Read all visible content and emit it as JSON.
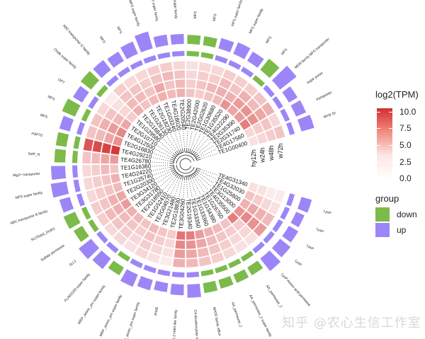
{
  "chart_data": {
    "type": "heatmap",
    "layout": "circular",
    "title": "",
    "colorbar": {
      "title": "log2(TPM)",
      "ticks": [
        "10.0",
        "7.5",
        "5.0",
        "2.5",
        "0.0"
      ],
      "range": [
        0,
        10.5
      ],
      "low_color": "#ffffff",
      "high_color": "#d32f2f"
    },
    "group_legend": {
      "title": "group",
      "items": [
        {
          "label": "down",
          "color": "#7cba4a"
        },
        {
          "label": "up",
          "color": "#9c86f7"
        }
      ]
    },
    "columns": [
      "hy12h",
      "w24h",
      "w48h",
      "w72h"
    ],
    "genes": [
      {
        "id": "TE1G00400",
        "group": "up",
        "annotation": "MYB TF",
        "values": [
          1.5,
          2.0,
          2.5,
          3.0
        ]
      },
      {
        "id": "TE4G17560",
        "group": "up",
        "annotation": "transporter",
        "values": [
          2.0,
          2.5,
          3.0,
          2.0
        ]
      },
      {
        "id": "TE2G31740",
        "group": "up",
        "annotation": "sugar porter",
        "values": [
          6.5,
          5.5,
          4.5,
          4.0
        ]
      },
      {
        "id": "TE2G35390",
        "group": "up",
        "annotation": "MDR family MFS transporter",
        "values": [
          5.0,
          5.5,
          3.5,
          3.0
        ]
      },
      {
        "id": "TE4G22290",
        "group": "down",
        "annotation": "MFS",
        "values": [
          4.5,
          5.0,
          4.0,
          2.5
        ]
      },
      {
        "id": "TE1G35520",
        "group": "up",
        "annotation": "MFS",
        "values": [
          5.5,
          4.0,
          3.0,
          2.5
        ]
      },
      {
        "id": "TE1G30680",
        "group": "up",
        "annotation": "MFS super family",
        "values": [
          3.5,
          4.0,
          3.5,
          2.5
        ]
      },
      {
        "id": "TE2G02620",
        "group": "up",
        "annotation": "MFS super family",
        "values": [
          3.0,
          3.5,
          2.5,
          2.0
        ]
      },
      {
        "id": "TE2G42000",
        "group": "down",
        "annotation": "MFS",
        "values": [
          2.5,
          3.0,
          2.5,
          2.0
        ]
      },
      {
        "id": "TE2G38900",
        "group": "down",
        "annotation": "MFS",
        "values": [
          3.0,
          2.5,
          2.0,
          1.5
        ]
      },
      {
        "id": "TE2G20540",
        "group": "up",
        "annotation": "MFS sugar family",
        "values": [
          4.0,
          3.5,
          3.0,
          2.0
        ]
      },
      {
        "id": "TE4G18020",
        "group": "up",
        "annotation": "MFS super family",
        "values": [
          3.5,
          3.0,
          3.5,
          2.5
        ]
      },
      {
        "id": "TE1G03240",
        "group": "up",
        "annotation": "MFS super family",
        "values": [
          4.0,
          4.5,
          3.0,
          2.5
        ]
      },
      {
        "id": "TE2G18230",
        "group": "up",
        "annotation": "MFS",
        "values": [
          3.5,
          3.0,
          2.5,
          2.0
        ]
      },
      {
        "id": "TE1G26130",
        "group": "up",
        "annotation": "MFS",
        "values": [
          3.0,
          3.5,
          3.0,
          2.0
        ]
      },
      {
        "id": "TE2G16840",
        "group": "up",
        "annotation": "ABC transporter G family",
        "values": [
          4.0,
          3.5,
          3.0,
          2.5
        ]
      },
      {
        "id": "TE1G29580",
        "group": "down",
        "annotation": "Chalk super family",
        "values": [
          2.5,
          2.0,
          1.5,
          1.0
        ]
      },
      {
        "id": "TE2G10710",
        "group": "up",
        "annotation": "OPT",
        "values": [
          4.5,
          3.5,
          3.0,
          2.0
        ]
      },
      {
        "id": "TE4G12500",
        "group": "down",
        "annotation": "MFS",
        "values": [
          6.0,
          5.0,
          4.0,
          3.0
        ]
      },
      {
        "id": "TE2G16830",
        "group": "up",
        "annotation": "MFS",
        "values": [
          5.5,
          4.5,
          3.5,
          3.0
        ]
      },
      {
        "id": "TE4G29210",
        "group": "down",
        "annotation": "HSP70",
        "values": [
          10.0,
          9.5,
          9.0,
          8.5
        ]
      },
      {
        "id": "TE4G26780",
        "group": "down",
        "annotation": "SelP_N",
        "values": [
          5.0,
          4.5,
          3.5,
          3.0
        ]
      },
      {
        "id": "TE1G16360",
        "group": "up",
        "annotation": "Mg2+ transporter",
        "values": [
          3.0,
          3.5,
          2.5,
          2.0
        ]
      },
      {
        "id": "TE4G24220",
        "group": "up",
        "annotation": "MFS super family",
        "values": [
          4.0,
          3.0,
          2.5,
          2.0
        ]
      },
      {
        "id": "TE1G25740",
        "group": "up",
        "annotation": "ABC transporter B family",
        "values": [
          3.5,
          3.0,
          2.5,
          2.0
        ]
      },
      {
        "id": "TE2G20300",
        "group": "down",
        "annotation": "SLC5sbd_DUR3",
        "values": [
          4.5,
          4.0,
          3.0,
          2.5
        ]
      },
      {
        "id": "TE3G34120",
        "group": "down",
        "annotation": "Sulfate permease",
        "values": [
          5.0,
          4.0,
          3.5,
          2.5
        ]
      },
      {
        "id": "TE3G31780",
        "group": "up",
        "annotation": "SLL1",
        "values": [
          4.0,
          3.5,
          3.0,
          2.0
        ]
      },
      {
        "id": "TE2G18550",
        "group": "up",
        "annotation": "PLN03159 super family",
        "values": [
          3.5,
          3.0,
          2.5,
          2.0
        ]
      },
      {
        "id": "TE1G52410",
        "group": "down",
        "annotation": "MRP_assoc_pro super family",
        "values": [
          3.0,
          2.5,
          2.0,
          1.5
        ]
      },
      {
        "id": "TE2G04570",
        "group": "up",
        "annotation": "MRP_assoc_pro super family",
        "values": [
          3.5,
          3.0,
          2.5,
          2.0
        ]
      },
      {
        "id": "TE3G21480",
        "group": "up",
        "annotation": "MRP_assoc_pro super family",
        "values": [
          3.0,
          2.5,
          2.0,
          1.5
        ]
      },
      {
        "id": "TE2G18830",
        "group": "up",
        "annotation": "AmtB",
        "values": [
          2.5,
          2.0,
          1.5,
          1.0
        ]
      },
      {
        "id": "TE3G04260",
        "group": "up",
        "annotation": "ENA1-2 HAD-like family",
        "values": [
          7.0,
          6.0,
          5.0,
          4.0
        ]
      },
      {
        "id": "TE2G19340",
        "group": "up",
        "annotation": "C4-dicarboxylate transporter",
        "values": [
          6.5,
          5.5,
          4.5,
          3.5
        ]
      },
      {
        "id": "TE1G33350",
        "group": "down",
        "annotation": "MATE family efflux",
        "values": [
          5.0,
          4.5,
          3.5,
          3.0
        ]
      },
      {
        "id": "TE1G33360",
        "group": "down",
        "annotation": "AA_permease_2",
        "values": [
          4.0,
          3.5,
          3.0,
          2.5
        ]
      },
      {
        "id": "TE1G34390",
        "group": "down",
        "annotation": "AA_permease_2 super family",
        "values": [
          3.5,
          3.0,
          2.5,
          2.0
        ]
      },
      {
        "id": "TE1G26760",
        "group": "down",
        "annotation": "AA_permease_2",
        "values": [
          3.0,
          2.5,
          2.0,
          1.5
        ]
      },
      {
        "id": "TE4G35500",
        "group": "up",
        "annotation": "LysP Amino acid permease",
        "values": [
          6.5,
          2.5,
          2.0,
          1.5
        ]
      },
      {
        "id": "TE3G13000",
        "group": "up",
        "annotation": "LysP",
        "values": [
          5.5,
          6.0,
          5.5,
          5.0
        ]
      },
      {
        "id": "TE1G25600",
        "group": "up",
        "annotation": "LysP",
        "values": [
          4.0,
          4.5,
          4.0,
          3.5
        ]
      },
      {
        "id": "TE4G32030",
        "group": "up",
        "annotation": "LysP",
        "values": [
          3.0,
          2.5,
          2.0,
          1.5
        ]
      },
      {
        "id": "TE4G31340",
        "group": "up",
        "annotation": "LysP",
        "values": [
          1.5,
          1.5,
          1.0,
          1.0
        ]
      }
    ],
    "group_bar_heights": [
      0.9,
      0.6,
      0.5,
      1.8,
      1.0,
      0.6,
      0.8,
      0.6,
      0.4,
      0.4,
      0.5,
      0.6,
      1.4,
      0.9,
      0.6,
      0.8,
      0.9,
      0.6,
      1.0,
      0.6,
      0.6,
      0.6,
      1.0,
      1.2,
      0.6,
      0.8,
      0.5,
      1.2,
      0.9,
      0.4,
      0.9,
      0.6,
      0.4,
      0.6,
      0.9,
      0.5,
      0.4,
      0.4,
      0.4,
      1.2,
      0.9,
      0.6,
      0.4,
      0.6
    ]
  },
  "watermark": "知乎 @农心生信工作室"
}
